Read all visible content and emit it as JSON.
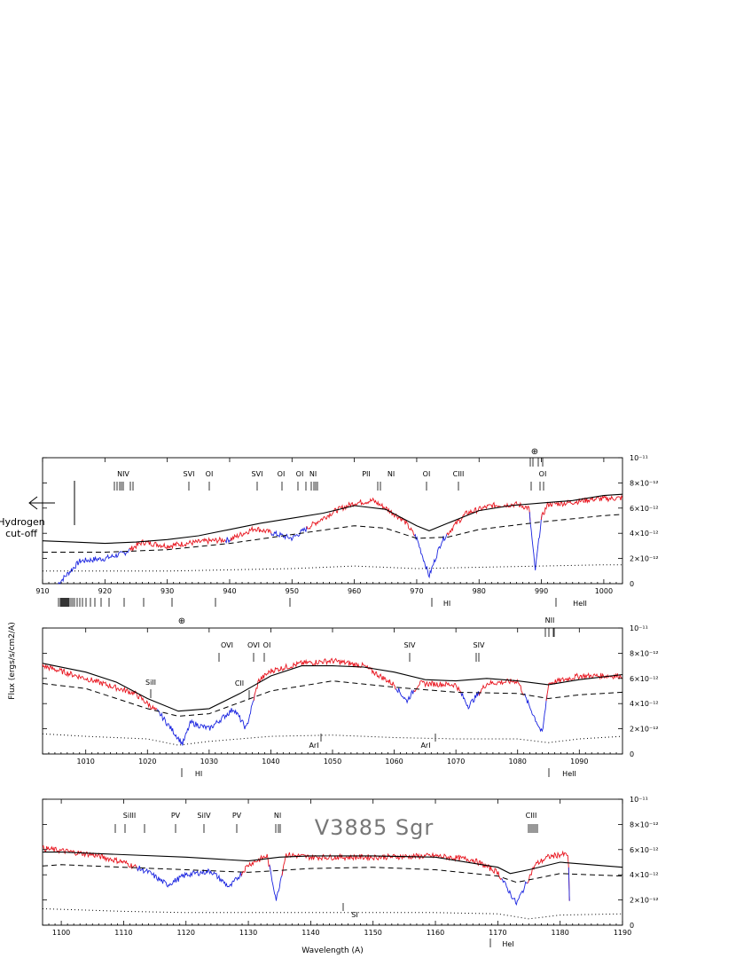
{
  "figure": {
    "ylabel": "Flux (ergs/s/cm2/A)",
    "xlabel": "Wavelength (A)",
    "star": "V3885 Sgr",
    "hydrogen_label_1": "Hydrogen",
    "hydrogen_label_2": "cut-off",
    "earth_symbol": "⊕"
  },
  "colors": {
    "obs_red": "#e8141e",
    "obs_blue": "#1a24e0",
    "model": "#000000"
  },
  "chart_data": [
    {
      "type": "line",
      "panel": 1,
      "xlim": [
        910,
        1003
      ],
      "ylim": [
        0,
        1e-11
      ],
      "xticks": [
        910,
        920,
        930,
        940,
        950,
        960,
        970,
        980,
        990,
        1000
      ],
      "yticks": [
        "0",
        "2×10⁻¹²",
        "4×10⁻¹²",
        "6×10⁻¹²",
        "8×10⁻¹²",
        "10⁻¹¹"
      ],
      "series": [
        {
          "kind": "observed",
          "x": [
            912.5,
            916,
            920,
            923,
            926,
            930,
            933,
            937,
            940,
            944,
            947,
            950,
            953,
            957,
            960,
            963,
            965,
            968,
            970,
            972,
            974,
            976,
            978,
            982,
            986,
            988,
            989,
            990,
            991,
            994,
            998,
            1003
          ],
          "y": [
            0.0,
            1.8e-12,
            2e-12,
            2.4e-12,
            3.3e-12,
            3e-12,
            3.2e-12,
            3.4e-12,
            3.5e-12,
            4.4e-12,
            4e-12,
            3.6e-12,
            4.6e-12,
            5.8e-12,
            6.4e-12,
            6.6e-12,
            6e-12,
            5e-12,
            3.6e-12,
            6e-13,
            3.4e-12,
            4.6e-12,
            5.6e-12,
            6.2e-12,
            6.3e-12,
            6e-12,
            1e-12,
            5.2e-12,
            6.3e-12,
            6.4e-12,
            6.7e-12,
            6.8e-12
          ]
        },
        {
          "kind": "model",
          "x": [
            910,
            915,
            920,
            925,
            930,
            935,
            940,
            945,
            950,
            955,
            960,
            965,
            970,
            972,
            975,
            980,
            985,
            990,
            995,
            1000,
            1003
          ],
          "y": [
            3.4e-12,
            3.3e-12,
            3.2e-12,
            3.3e-12,
            3.5e-12,
            3.8e-12,
            4.3e-12,
            4.8e-12,
            5.2e-12,
            5.6e-12,
            6.2e-12,
            5.9e-12,
            4.6e-12,
            4.2e-12,
            4.8e-12,
            5.8e-12,
            6.2e-12,
            6.4e-12,
            6.6e-12,
            7e-12,
            7.1e-12
          ]
        },
        {
          "kind": "model-dashed",
          "x": [
            910,
            920,
            930,
            940,
            950,
            960,
            965,
            970,
            975,
            980,
            990,
            1000,
            1003
          ],
          "y": [
            2.5e-12,
            2.5e-12,
            2.7e-12,
            3.2e-12,
            3.9e-12,
            4.6e-12,
            4.4e-12,
            3.6e-12,
            3.7e-12,
            4.3e-12,
            4.9e-12,
            5.4e-12,
            5.5e-12
          ]
        },
        {
          "kind": "model-dotted",
          "x": [
            910,
            920,
            930,
            940,
            950,
            960,
            970,
            980,
            990,
            1000,
            1003
          ],
          "y": [
            1e-12,
            1e-12,
            1e-12,
            1.1e-12,
            1.2e-12,
            1.4e-12,
            1.2e-12,
            1.3e-12,
            1.4e-12,
            1.5e-12,
            1.5e-12
          ]
        }
      ],
      "line_ids_top": [
        "NIV",
        "SVI",
        "OI",
        "SVI",
        "OI",
        "OI",
        "NI",
        "PII",
        "NI",
        "OI",
        "CIII",
        "OI"
      ],
      "line_ids_bottom": [
        "HI",
        "HeII"
      ]
    },
    {
      "type": "line",
      "panel": 2,
      "xlim": [
        1003,
        1097
      ],
      "ylim": [
        0,
        1e-11
      ],
      "xticks": [
        1010,
        1020,
        1030,
        1040,
        1050,
        1060,
        1070,
        1080,
        1090
      ],
      "yticks": [
        "0",
        "2×10⁻¹²",
        "4×10⁻¹²",
        "6×10⁻¹²",
        "8×10⁻¹²",
        "10⁻¹¹"
      ],
      "series": [
        {
          "kind": "observed",
          "x": [
            1003,
            1010,
            1018,
            1022,
            1025.7,
            1027,
            1030,
            1034,
            1036,
            1038,
            1040,
            1045,
            1050,
            1055,
            1060,
            1062,
            1064,
            1070,
            1072,
            1075,
            1080,
            1084,
            1085,
            1090,
            1097
          ],
          "y": [
            7e-12,
            6e-12,
            4.8e-12,
            3.2e-12,
            8e-13,
            2.5e-12,
            2e-12,
            3.6e-12,
            2e-12,
            5.8e-12,
            6.6e-12,
            7.2e-12,
            7.4e-12,
            7e-12,
            5.5e-12,
            4.2e-12,
            5.6e-12,
            5.5e-12,
            3.8e-12,
            5.6e-12,
            5.8e-12,
            1.6e-12,
            5.6e-12,
            6.2e-12,
            6.2e-12
          ]
        },
        {
          "kind": "model",
          "x": [
            1003,
            1010,
            1015,
            1020,
            1025,
            1030,
            1035,
            1040,
            1045,
            1050,
            1055,
            1060,
            1065,
            1070,
            1075,
            1080,
            1085,
            1090,
            1097
          ],
          "y": [
            7.2e-12,
            6.5e-12,
            5.7e-12,
            4.4e-12,
            3.4e-12,
            3.6e-12,
            4.8e-12,
            6.2e-12,
            7e-12,
            7e-12,
            6.9e-12,
            6.5e-12,
            5.9e-12,
            5.8e-12,
            6e-12,
            5.8e-12,
            5.5e-12,
            5.9e-12,
            6.3e-12
          ]
        },
        {
          "kind": "model-dashed",
          "x": [
            1003,
            1010,
            1020,
            1025,
            1030,
            1040,
            1050,
            1060,
            1070,
            1080,
            1085,
            1090,
            1097
          ],
          "y": [
            5.6e-12,
            5.2e-12,
            3.6e-12,
            3e-12,
            3.2e-12,
            5e-12,
            5.8e-12,
            5.3e-12,
            4.9e-12,
            4.8e-12,
            4.4e-12,
            4.7e-12,
            4.9e-12
          ]
        },
        {
          "kind": "model-dotted",
          "x": [
            1003,
            1010,
            1020,
            1025,
            1030,
            1040,
            1050,
            1060,
            1070,
            1080,
            1085,
            1090,
            1097
          ],
          "y": [
            1.6e-12,
            1.4e-12,
            1.2e-12,
            7e-13,
            1e-12,
            1.4e-12,
            1.5e-12,
            1.3e-12,
            1.2e-12,
            1.2e-12,
            9e-13,
            1.2e-12,
            1.4e-12
          ]
        }
      ],
      "line_ids_top": [
        "SiII",
        "OVI",
        "CII",
        "OVI",
        "OI",
        "SIV",
        "SIV",
        "NII"
      ],
      "line_ids_bottom": [
        "ArI",
        "ArI",
        "HI",
        "HeII"
      ]
    },
    {
      "type": "line",
      "panel": 3,
      "xlim": [
        1097,
        1190
      ],
      "ylim": [
        0,
        1e-11
      ],
      "xticks": [
        1100,
        1110,
        1120,
        1130,
        1140,
        1150,
        1160,
        1170,
        1180,
        1190
      ],
      "yticks": [
        "0",
        "2×10⁻¹²",
        "4×10⁻¹²",
        "6×10⁻¹²",
        "8×10⁻¹²",
        "10⁻¹¹"
      ],
      "series": [
        {
          "kind": "observed",
          "x": [
            1097,
            1105,
            1110,
            1114,
            1117,
            1120,
            1124,
            1127,
            1130,
            1133,
            1134.5,
            1136,
            1140,
            1150,
            1160,
            1166,
            1170,
            1173,
            1176,
            1178,
            1180,
            1181.3,
            1181.6
          ],
          "y": [
            6.1e-12,
            5.6e-12,
            5e-12,
            4.2e-12,
            3.2e-12,
            4e-12,
            4.3e-12,
            3e-12,
            4.8e-12,
            5.5e-12,
            2e-12,
            5.6e-12,
            5.4e-12,
            5.4e-12,
            5.5e-12,
            5.2e-12,
            4.2e-12,
            1.7e-12,
            4.8e-12,
            5.4e-12,
            5.6e-12,
            5.6e-12,
            0.0
          ]
        },
        {
          "kind": "model",
          "x": [
            1097,
            1100,
            1110,
            1120,
            1130,
            1135,
            1140,
            1150,
            1160,
            1170,
            1172,
            1175,
            1180,
            1190
          ],
          "y": [
            5.8e-12,
            5.8e-12,
            5.6e-12,
            5.4e-12,
            5.1e-12,
            5.4e-12,
            5.5e-12,
            5.5e-12,
            5.4e-12,
            4.6e-12,
            4.1e-12,
            4.4e-12,
            5e-12,
            4.6e-12
          ]
        },
        {
          "kind": "model-dashed",
          "x": [
            1097,
            1100,
            1110,
            1120,
            1130,
            1140,
            1150,
            1160,
            1170,
            1173,
            1176,
            1180,
            1190
          ],
          "y": [
            4.7e-12,
            4.8e-12,
            4.6e-12,
            4.4e-12,
            4.2e-12,
            4.5e-12,
            4.6e-12,
            4.4e-12,
            3.9e-12,
            3.4e-12,
            3.7e-12,
            4.1e-12,
            3.9e-12
          ]
        },
        {
          "kind": "model-dotted",
          "x": [
            1097,
            1110,
            1120,
            1130,
            1140,
            1150,
            1160,
            1170,
            1175,
            1180,
            1190
          ],
          "y": [
            1.3e-12,
            1.1e-12,
            1e-12,
            1e-12,
            1e-12,
            1e-12,
            1e-12,
            9e-13,
            5e-13,
            8e-13,
            9e-13
          ]
        }
      ],
      "line_ids_top": [
        "SiIII",
        "PV",
        "SiIV",
        "PV",
        "NI",
        "CIII"
      ],
      "line_ids_bottom": [
        "SI",
        "HeI"
      ]
    }
  ]
}
